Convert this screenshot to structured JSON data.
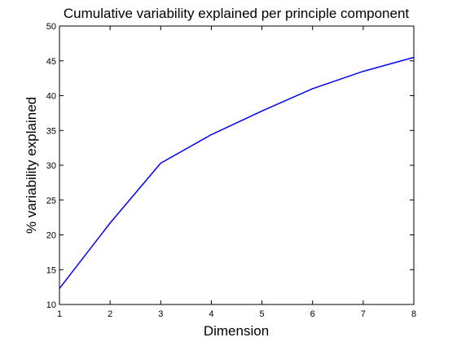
{
  "chart_data": {
    "type": "line",
    "title": "Cumulative variability explained per principle component",
    "xlabel": "Dimension",
    "ylabel": "% variability explained",
    "xlim": [
      1,
      8
    ],
    "ylim": [
      10,
      50
    ],
    "xticks": [
      1,
      2,
      3,
      4,
      5,
      6,
      7,
      8
    ],
    "yticks": [
      10,
      15,
      20,
      25,
      30,
      35,
      40,
      45,
      50
    ],
    "grid": false,
    "legend": "none",
    "series": [
      {
        "color": "#0000ff",
        "x": [
          1,
          2,
          3,
          4,
          5,
          6,
          7,
          8
        ],
        "y": [
          12.3,
          21.7,
          30.3,
          34.4,
          37.8,
          41.0,
          43.5,
          45.5
        ]
      }
    ]
  }
}
